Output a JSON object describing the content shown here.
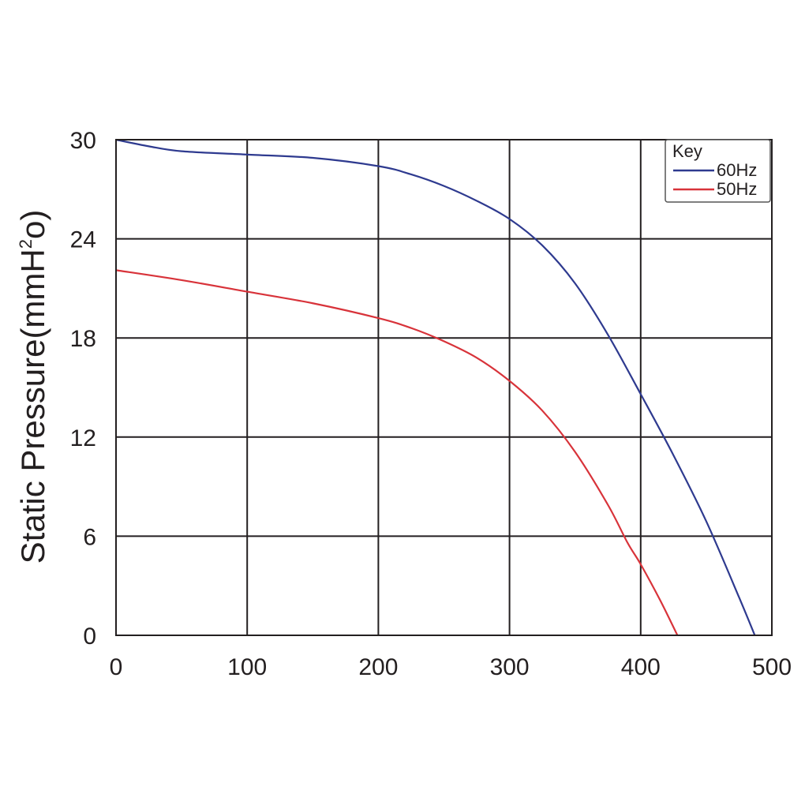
{
  "chart_data": {
    "type": "line",
    "title": "",
    "xlabel": "",
    "ylabel": {
      "main": "Static Pressure(mmH",
      "superscript": "2",
      "tail": "o)"
    },
    "xlim": [
      0,
      500
    ],
    "ylim": [
      0,
      30
    ],
    "xticks": [
      "0",
      "100",
      "200",
      "300",
      "400",
      "500"
    ],
    "yticks": [
      "0",
      "6",
      "12",
      "18",
      "24",
      "30"
    ],
    "grid": true,
    "legend": {
      "title": "Key",
      "placement": "top-right"
    },
    "series": [
      {
        "name": "60Hz",
        "color": "#2e3a8f",
        "x": [
          0,
          25,
          50,
          100,
          150,
          200,
          225,
          250,
          275,
          300,
          325,
          350,
          375,
          400,
          425,
          450,
          475,
          487
        ],
        "y": [
          30,
          29.6,
          29.3,
          29.1,
          28.9,
          28.4,
          27.9,
          27.2,
          26.3,
          25.2,
          23.6,
          21.3,
          18.2,
          14.6,
          10.9,
          6.9,
          2.3,
          0
        ]
      },
      {
        "name": "50Hz",
        "color": "#d8333a",
        "x": [
          0,
          50,
          100,
          150,
          200,
          225,
          250,
          275,
          300,
          325,
          350,
          375,
          390,
          400,
          415,
          428
        ],
        "y": [
          22.1,
          21.5,
          20.8,
          20.1,
          19.2,
          18.6,
          17.8,
          16.8,
          15.4,
          13.6,
          11.1,
          7.9,
          5.6,
          4.3,
          2.1,
          0
        ]
      }
    ]
  }
}
